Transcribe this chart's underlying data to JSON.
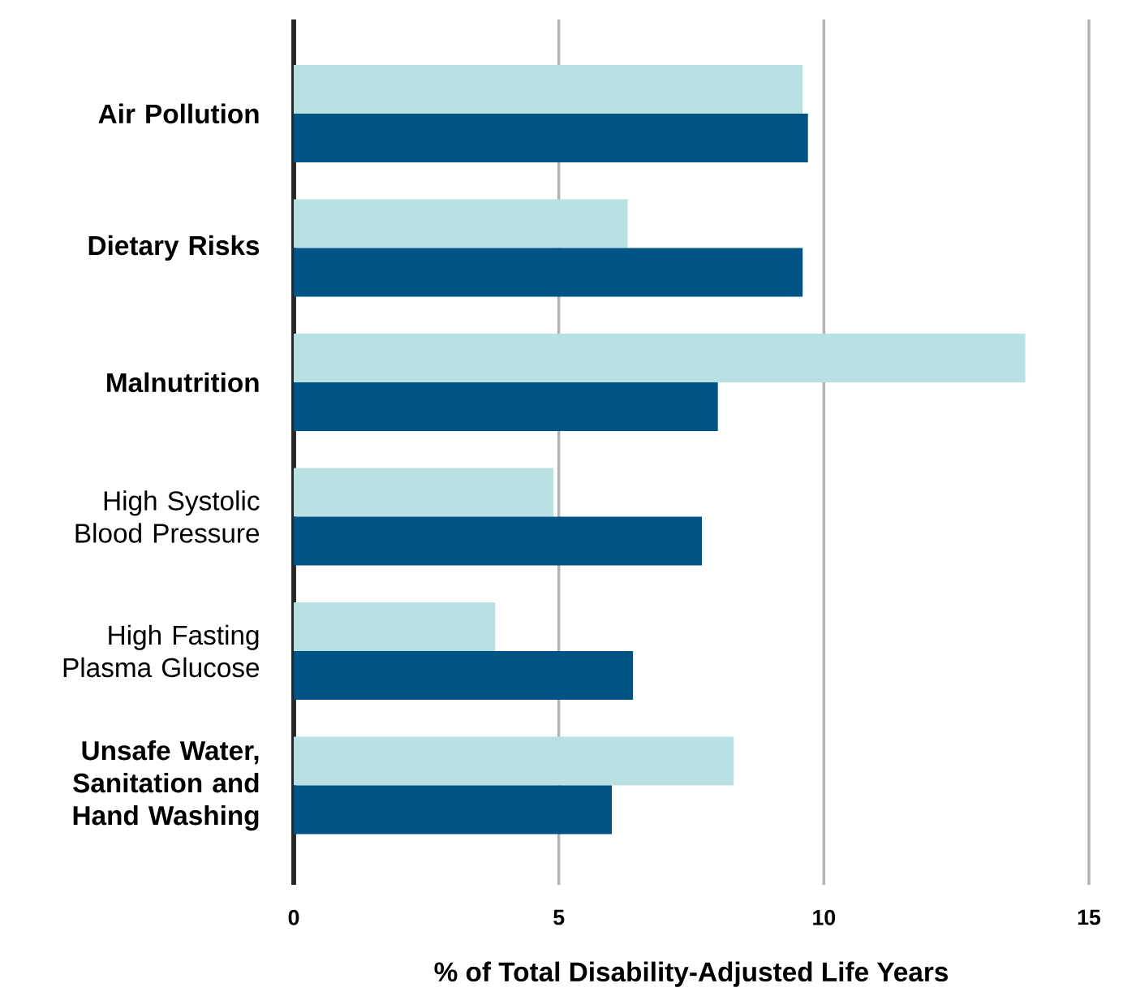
{
  "chart_data": {
    "type": "bar",
    "orientation": "horizontal",
    "xlabel": "% of Total Disability-Adjusted Life Years",
    "categories": [
      "**Air Pollution**",
      "**Dietary Risks**",
      "**Malnutrition**",
      "High Systolic Blood Pressure",
      "High Fasting Plasma Glucose",
      "**Unsafe Water, Sanitation and Hand Washing**"
    ],
    "series": [
      {
        "color": "#b9e0e2",
        "values": [
          9.6,
          6.3,
          13.8,
          4.9,
          3.8,
          8.3
        ]
      },
      {
        "color": "#005385",
        "values": [
          9.7,
          9.6,
          8.0,
          7.7,
          6.4,
          6.0
        ]
      }
    ],
    "xlim": [
      0,
      15
    ],
    "xticks": [
      0,
      5,
      10,
      15
    ],
    "grid": "x"
  }
}
